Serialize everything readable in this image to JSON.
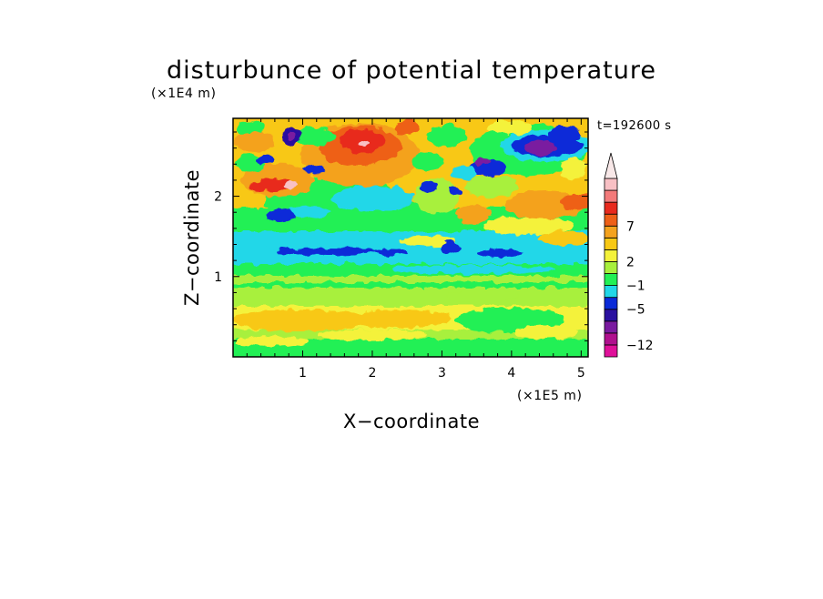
{
  "chart_data": {
    "type": "heatmap",
    "title": "disturbunce of potential temperature",
    "timestamp": "t=192600 s",
    "xlabel": "X−coordinate",
    "ylabel": "Z−coordinate",
    "x_unit": "(×1E5 m)",
    "y_unit": "(×1E4 m)",
    "xlim": [
      0,
      5.1
    ],
    "ylim": [
      0,
      2.97
    ],
    "x_ticks": [
      1,
      2,
      3,
      4,
      5
    ],
    "y_ticks": [
      1,
      2
    ],
    "colorbar": {
      "tick_values": [
        7,
        2,
        -1,
        -5,
        -12
      ],
      "tick_labels": [
        "7",
        "2",
        "−1",
        "−5",
        "−12"
      ],
      "colors": [
        "#e0109a",
        "#b0108e",
        "#7a1aa0",
        "#2a10a0",
        "#0a2ad8",
        "#21d7e8",
        "#22f055",
        "#a8f03c",
        "#f4f23a",
        "#f8c814",
        "#f4a21e",
        "#ee6018",
        "#e82a1e",
        "#f37a7a",
        "#f8c0c4"
      ],
      "over_color": "#f8e8e8"
    }
  }
}
